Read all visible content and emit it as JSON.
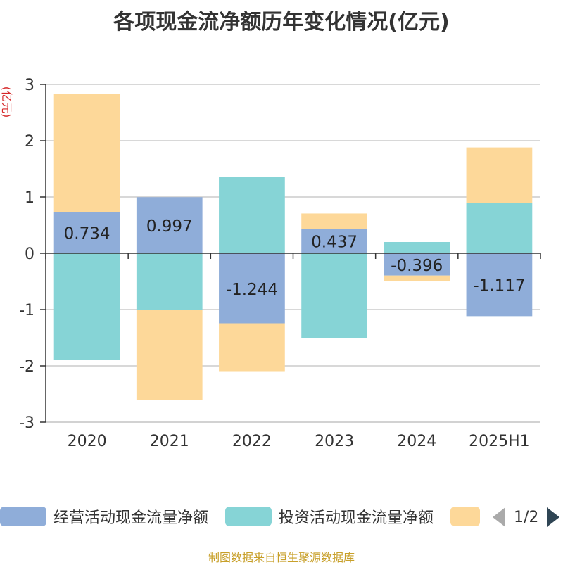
{
  "title": "各项现金流净额历年变化情况(亿元)",
  "source": "制图数据来自恒生聚源数据库",
  "legend": {
    "items": [
      {
        "label": "经营活动现金流量净额",
        "color": "#8fadd9"
      },
      {
        "label": "投资活动现金流量净额",
        "color": "#86d4d6"
      },
      {
        "label": "",
        "color": "#fdd899"
      }
    ],
    "page": "1/2"
  },
  "chart_data": {
    "type": "bar",
    "stacked": true,
    "ylabel": "(亿元)",
    "ylim": [
      -3,
      3
    ],
    "yticks": [
      3,
      2,
      1,
      0,
      -1,
      -2,
      -3
    ],
    "grid": true,
    "legend_position": "bottom",
    "categories": [
      "2020",
      "2021",
      "2022",
      "2023",
      "2024",
      "2025H1"
    ],
    "series": [
      {
        "name": "经营活动现金流量净额",
        "color": "#8fadd9",
        "label_values": true,
        "values": [
          0.734,
          0.997,
          -1.244,
          0.437,
          -0.396,
          -1.117
        ]
      },
      {
        "name": "投资活动现金流量净额",
        "color": "#86d4d6",
        "label_values": false,
        "values": [
          -1.9,
          -1.0,
          1.35,
          -1.5,
          0.2,
          0.9
        ]
      },
      {
        "name": "",
        "color": "#fdd899",
        "label_values": false,
        "values": [
          2.1,
          -1.6,
          -0.85,
          0.27,
          -0.1,
          0.98
        ]
      }
    ]
  }
}
